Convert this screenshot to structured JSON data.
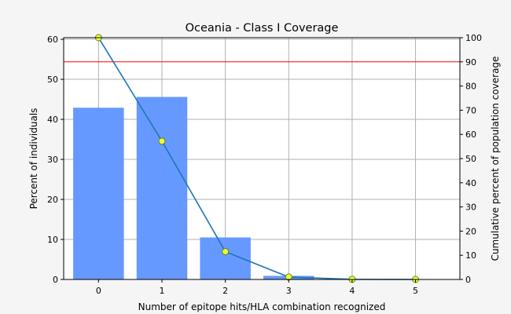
{
  "chart_data": {
    "type": "bar+line",
    "title": "Oceania - Class I Coverage",
    "xlabel": "Number of epitope hits/HLA combination recognized",
    "ylabel_left": "Percent of individuals",
    "ylabel_right": "Cumulative percent of population coverage",
    "categories": [
      0,
      1,
      2,
      3,
      4,
      5
    ],
    "xlim": [
      -0.55,
      5.7
    ],
    "ylim_left": [
      0,
      60.4
    ],
    "ylim_right": [
      0,
      100
    ],
    "yticks_left": [
      0,
      10,
      20,
      30,
      40,
      50,
      60
    ],
    "yticks_right": [
      0,
      10,
      20,
      30,
      40,
      50,
      60,
      70,
      80,
      90,
      100
    ],
    "grid": true,
    "bars": {
      "axis": "left",
      "color": "#6699ff",
      "values": [
        42.9,
        45.6,
        10.5,
        0.9,
        0.05,
        0.0
      ]
    },
    "line": {
      "axis": "right",
      "color": "#1f77b4",
      "marker_fill": "#ffff33",
      "values": [
        100.0,
        57.2,
        11.5,
        1.0,
        0.05,
        0.0
      ]
    },
    "reference_line": {
      "axis": "right",
      "color": "#ff0000",
      "value": 90
    }
  }
}
